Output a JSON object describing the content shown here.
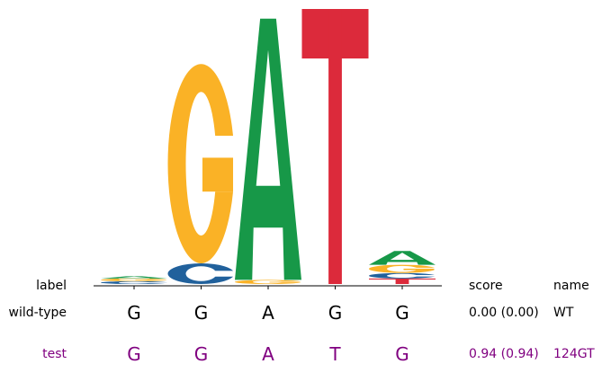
{
  "chart_data": {
    "type": "sequence-logo",
    "positions": [
      {
        "letters": [
          {
            "base": "C",
            "height": 0.01
          },
          {
            "base": "G",
            "height": 0.01
          },
          {
            "base": "A",
            "height": 0.008
          }
        ]
      },
      {
        "letters": [
          {
            "base": "C",
            "height": 0.075
          },
          {
            "base": "G",
            "height": 0.725
          }
        ]
      },
      {
        "letters": [
          {
            "base": "G",
            "height": 0.015
          },
          {
            "base": "A",
            "height": 0.95
          }
        ]
      },
      {
        "letters": [
          {
            "base": "T",
            "height": 1.0
          }
        ]
      },
      {
        "letters": [
          {
            "base": "T",
            "height": 0.02
          },
          {
            "base": "C",
            "height": 0.02
          },
          {
            "base": "G",
            "height": 0.03
          },
          {
            "base": "A",
            "height": 0.05
          }
        ]
      }
    ],
    "colors": {
      "A": "#179848",
      "C": "#21619c",
      "G": "#fab226",
      "T": "#dc2a3b"
    },
    "label_header": "label",
    "score_header": "score",
    "name_header": "name",
    "sequences": [
      {
        "label": "wild-type",
        "bases": [
          "G",
          "G",
          "A",
          "G",
          "G"
        ],
        "score": "0.00 (0.00)",
        "name": "WT",
        "color": "#000000"
      },
      {
        "label": "test",
        "bases": [
          "G",
          "G",
          "A",
          "T",
          "G"
        ],
        "score": "0.94 (0.94)",
        "name": "124GT",
        "color": "#800080"
      }
    ]
  }
}
